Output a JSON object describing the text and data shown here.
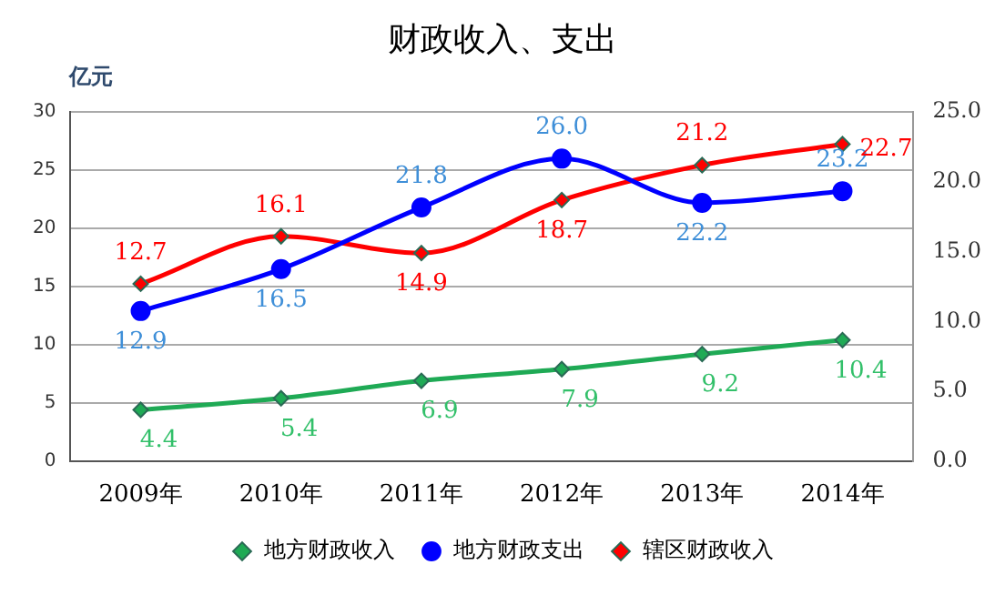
{
  "chart_data": {
    "type": "line",
    "title": "财政收入、支出",
    "ylabel": "亿元",
    "categories": [
      "2009年",
      "2010年",
      "2011年",
      "2012年",
      "2013年",
      "2014年"
    ],
    "series": [
      {
        "name": "地方财政收入",
        "color": "#1faa55",
        "marker": "diamond",
        "values": [
          4.4,
          5.4,
          6.9,
          7.9,
          9.2,
          10.4
        ],
        "value_labels": [
          "4.4",
          "5.4",
          "6.9",
          "7.9",
          "9.2",
          "10.4"
        ]
      },
      {
        "name": "地方财政支出",
        "color": "#0000ff",
        "marker": "circle",
        "values": [
          12.9,
          16.5,
          21.8,
          26.0,
          22.2,
          23.2
        ],
        "value_labels": [
          "12.9",
          "16.5",
          "21.8",
          "26.0",
          "22.2",
          "23.2"
        ]
      },
      {
        "name": "辖区财政收入",
        "color": "#ff0000",
        "marker": "diamond",
        "axis": "y2",
        "values": [
          12.7,
          16.1,
          14.9,
          18.7,
          21.2,
          22.7
        ],
        "value_labels": [
          "12.7",
          "16.1",
          "14.9",
          "18.7",
          "21.2",
          "22.7"
        ]
      }
    ],
    "ylim": [
      0,
      30
    ],
    "yticks": [
      0,
      5,
      10,
      15,
      20,
      25,
      30
    ],
    "y2lim": [
      0,
      25
    ],
    "y2ticks": [
      {
        "value": 0,
        "label": "0.0"
      },
      {
        "value": 5,
        "label": "5.0"
      },
      {
        "value": 10,
        "label": "10.0"
      },
      {
        "value": 15,
        "label": "15.0"
      },
      {
        "value": 20,
        "label": "20.0"
      },
      {
        "value": 25,
        "label": "25.0"
      }
    ],
    "grid": "y",
    "legend": "bottom"
  }
}
